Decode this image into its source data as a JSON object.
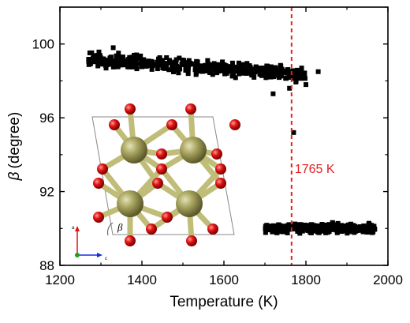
{
  "chart_data": {
    "type": "scatter",
    "xlabel": "Temperature (K)",
    "ylabel_symbol": "β",
    "ylabel_unit": "(degree)",
    "xlim": [
      1200,
      2000
    ],
    "ylim": [
      88,
      102
    ],
    "xticks": [
      1200,
      1400,
      1600,
      1800,
      2000
    ],
    "yticks": [
      88,
      92,
      96,
      100
    ],
    "grid": false,
    "legend": "none",
    "marker": "square",
    "marker_color": "#000000",
    "series": [
      {
        "cluster_low_temperature_phase": {
          "x_range": [
            1270,
            1800
          ],
          "y_start": 99.2,
          "y_end": 98.3,
          "spread": 0.5,
          "count": 440,
          "outliers": [
            [
              1330,
              99.8
            ],
            [
              1720,
              97.3
            ],
            [
              1770,
              95.2
            ],
            [
              1800,
              97.8
            ],
            [
              1830,
              98.5
            ],
            [
              1760,
              97.6
            ]
          ]
        },
        "cluster_high_temperature_phase": {
          "x_range": [
            1700,
            1970
          ],
          "y_center": 90.0,
          "spread": 0.35,
          "count": 320
        }
      }
    ],
    "annotations": [
      {
        "type": "vline",
        "x": 1765,
        "color": "#e32222",
        "style": "dashed",
        "label": "1765 K"
      }
    ],
    "inset": {
      "axis_labels": {
        "a": "a",
        "c": "c"
      },
      "angle_symbol": "β",
      "atom_colors": {
        "large": "#8e8a4a",
        "small": "#e01010",
        "bond": "#c0bd78"
      }
    }
  }
}
